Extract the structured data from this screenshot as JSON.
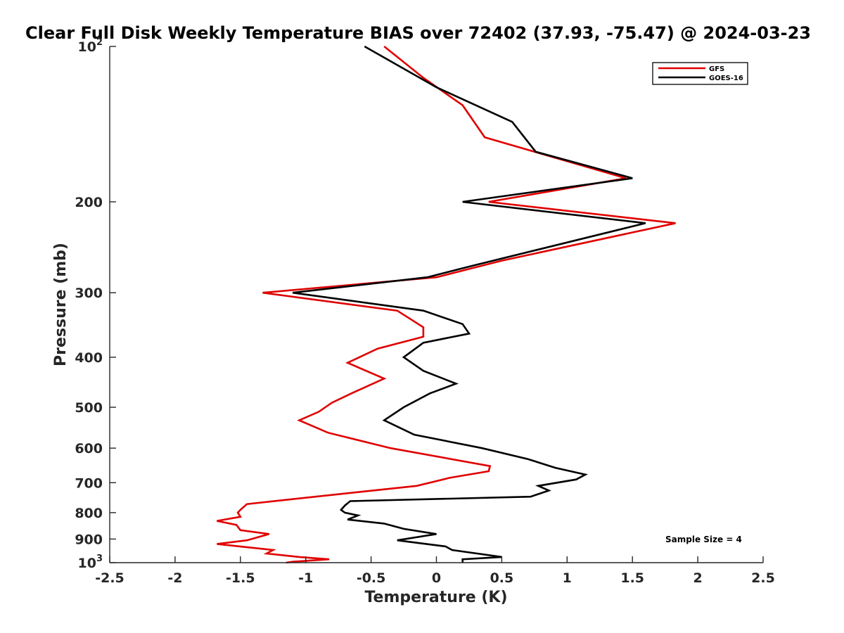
{
  "chart_data": {
    "type": "line",
    "title": "Clear Full Disk Weekly Temperature BIAS over 72402 (37.93, -75.47) @ 2024-03-23",
    "xlabel": "Temperature (K)",
    "ylabel": "Pressure (mb)",
    "xlim": [
      -2.5,
      2.5
    ],
    "ylim": [
      1000,
      100
    ],
    "yscale": "log",
    "yreverse": true,
    "x_ticks": [
      "-2.5",
      "-2",
      "-1.5",
      "-1",
      "-0.5",
      "0",
      "0.5",
      "1",
      "1.5",
      "2",
      "2.5"
    ],
    "y_ticks": [
      {
        "base": "10",
        "exp": "2"
      },
      {
        "base": "200",
        "exp": ""
      },
      {
        "base": "300",
        "exp": ""
      },
      {
        "base": "400",
        "exp": ""
      },
      {
        "base": "500",
        "exp": ""
      },
      {
        "base": "600",
        "exp": ""
      },
      {
        "base": "700",
        "exp": ""
      },
      {
        "base": "800",
        "exp": ""
      },
      {
        "base": "900",
        "exp": ""
      },
      {
        "base": "10",
        "exp": "3"
      }
    ],
    "grid": false,
    "legend": "top-right",
    "annotation": "Sample Size = 4",
    "series": [
      {
        "name": "GFS",
        "color": "#e00000",
        "points": [
          [
            -0.4,
            100
          ],
          [
            -0.1,
            115
          ],
          [
            0.2,
            130
          ],
          [
            0.37,
            150
          ],
          [
            1.45,
            180
          ],
          [
            0.4,
            200
          ],
          [
            1.83,
            220
          ],
          [
            0.5,
            260
          ],
          [
            0.0,
            280
          ],
          [
            -1.33,
            300
          ],
          [
            -0.3,
            325
          ],
          [
            -0.1,
            350
          ],
          [
            -0.1,
            365
          ],
          [
            -0.45,
            385
          ],
          [
            -0.68,
            410
          ],
          [
            -0.4,
            440
          ],
          [
            -0.65,
            470
          ],
          [
            -0.8,
            490
          ],
          [
            -0.9,
            510
          ],
          [
            -1.05,
            530
          ],
          [
            -0.83,
            560
          ],
          [
            -0.35,
            600
          ],
          [
            0.41,
            650
          ],
          [
            0.4,
            665
          ],
          [
            0.1,
            685
          ],
          [
            0.05,
            690
          ],
          [
            -0.15,
            710
          ],
          [
            -0.6,
            730
          ],
          [
            -1.45,
            770
          ],
          [
            -1.5,
            790
          ],
          [
            -1.52,
            800
          ],
          [
            -1.5,
            815
          ],
          [
            -1.68,
            830
          ],
          [
            -1.53,
            845
          ],
          [
            -1.5,
            865
          ],
          [
            -1.28,
            880
          ],
          [
            -1.45,
            905
          ],
          [
            -1.68,
            920
          ],
          [
            -1.25,
            945
          ],
          [
            -1.3,
            960
          ],
          [
            -1.05,
            975
          ],
          [
            -0.82,
            985
          ],
          [
            -1.0,
            992
          ],
          [
            -1.1,
            996
          ],
          [
            -1.15,
            1000
          ]
        ]
      },
      {
        "name": "GOES-16",
        "color": "#000000",
        "points": [
          [
            -0.55,
            100
          ],
          [
            0.0,
            120
          ],
          [
            0.58,
            140
          ],
          [
            0.76,
            160
          ],
          [
            1.5,
            180
          ],
          [
            0.2,
            200
          ],
          [
            1.6,
            220
          ],
          [
            0.3,
            265
          ],
          [
            -0.07,
            280
          ],
          [
            -1.1,
            300
          ],
          [
            -0.1,
            325
          ],
          [
            0.2,
            345
          ],
          [
            0.25,
            360
          ],
          [
            -0.1,
            375
          ],
          [
            -0.25,
            400
          ],
          [
            -0.1,
            425
          ],
          [
            0.15,
            450
          ],
          [
            -0.05,
            470
          ],
          [
            -0.25,
            500
          ],
          [
            -0.4,
            530
          ],
          [
            -0.17,
            565
          ],
          [
            0.35,
            600
          ],
          [
            0.7,
            630
          ],
          [
            0.91,
            655
          ],
          [
            1.14,
            675
          ],
          [
            1.07,
            690
          ],
          [
            0.78,
            710
          ],
          [
            0.86,
            725
          ],
          [
            0.72,
            745
          ],
          [
            -0.66,
            760
          ],
          [
            -0.7,
            775
          ],
          [
            -0.73,
            790
          ],
          [
            -0.7,
            800
          ],
          [
            -0.6,
            810
          ],
          [
            -0.68,
            825
          ],
          [
            -0.4,
            840
          ],
          [
            -0.25,
            860
          ],
          [
            0.0,
            880
          ],
          [
            -0.3,
            905
          ],
          [
            0.07,
            930
          ],
          [
            0.12,
            945
          ],
          [
            0.5,
            975
          ],
          [
            0.2,
            985
          ],
          [
            0.2,
            1000
          ]
        ]
      }
    ]
  }
}
